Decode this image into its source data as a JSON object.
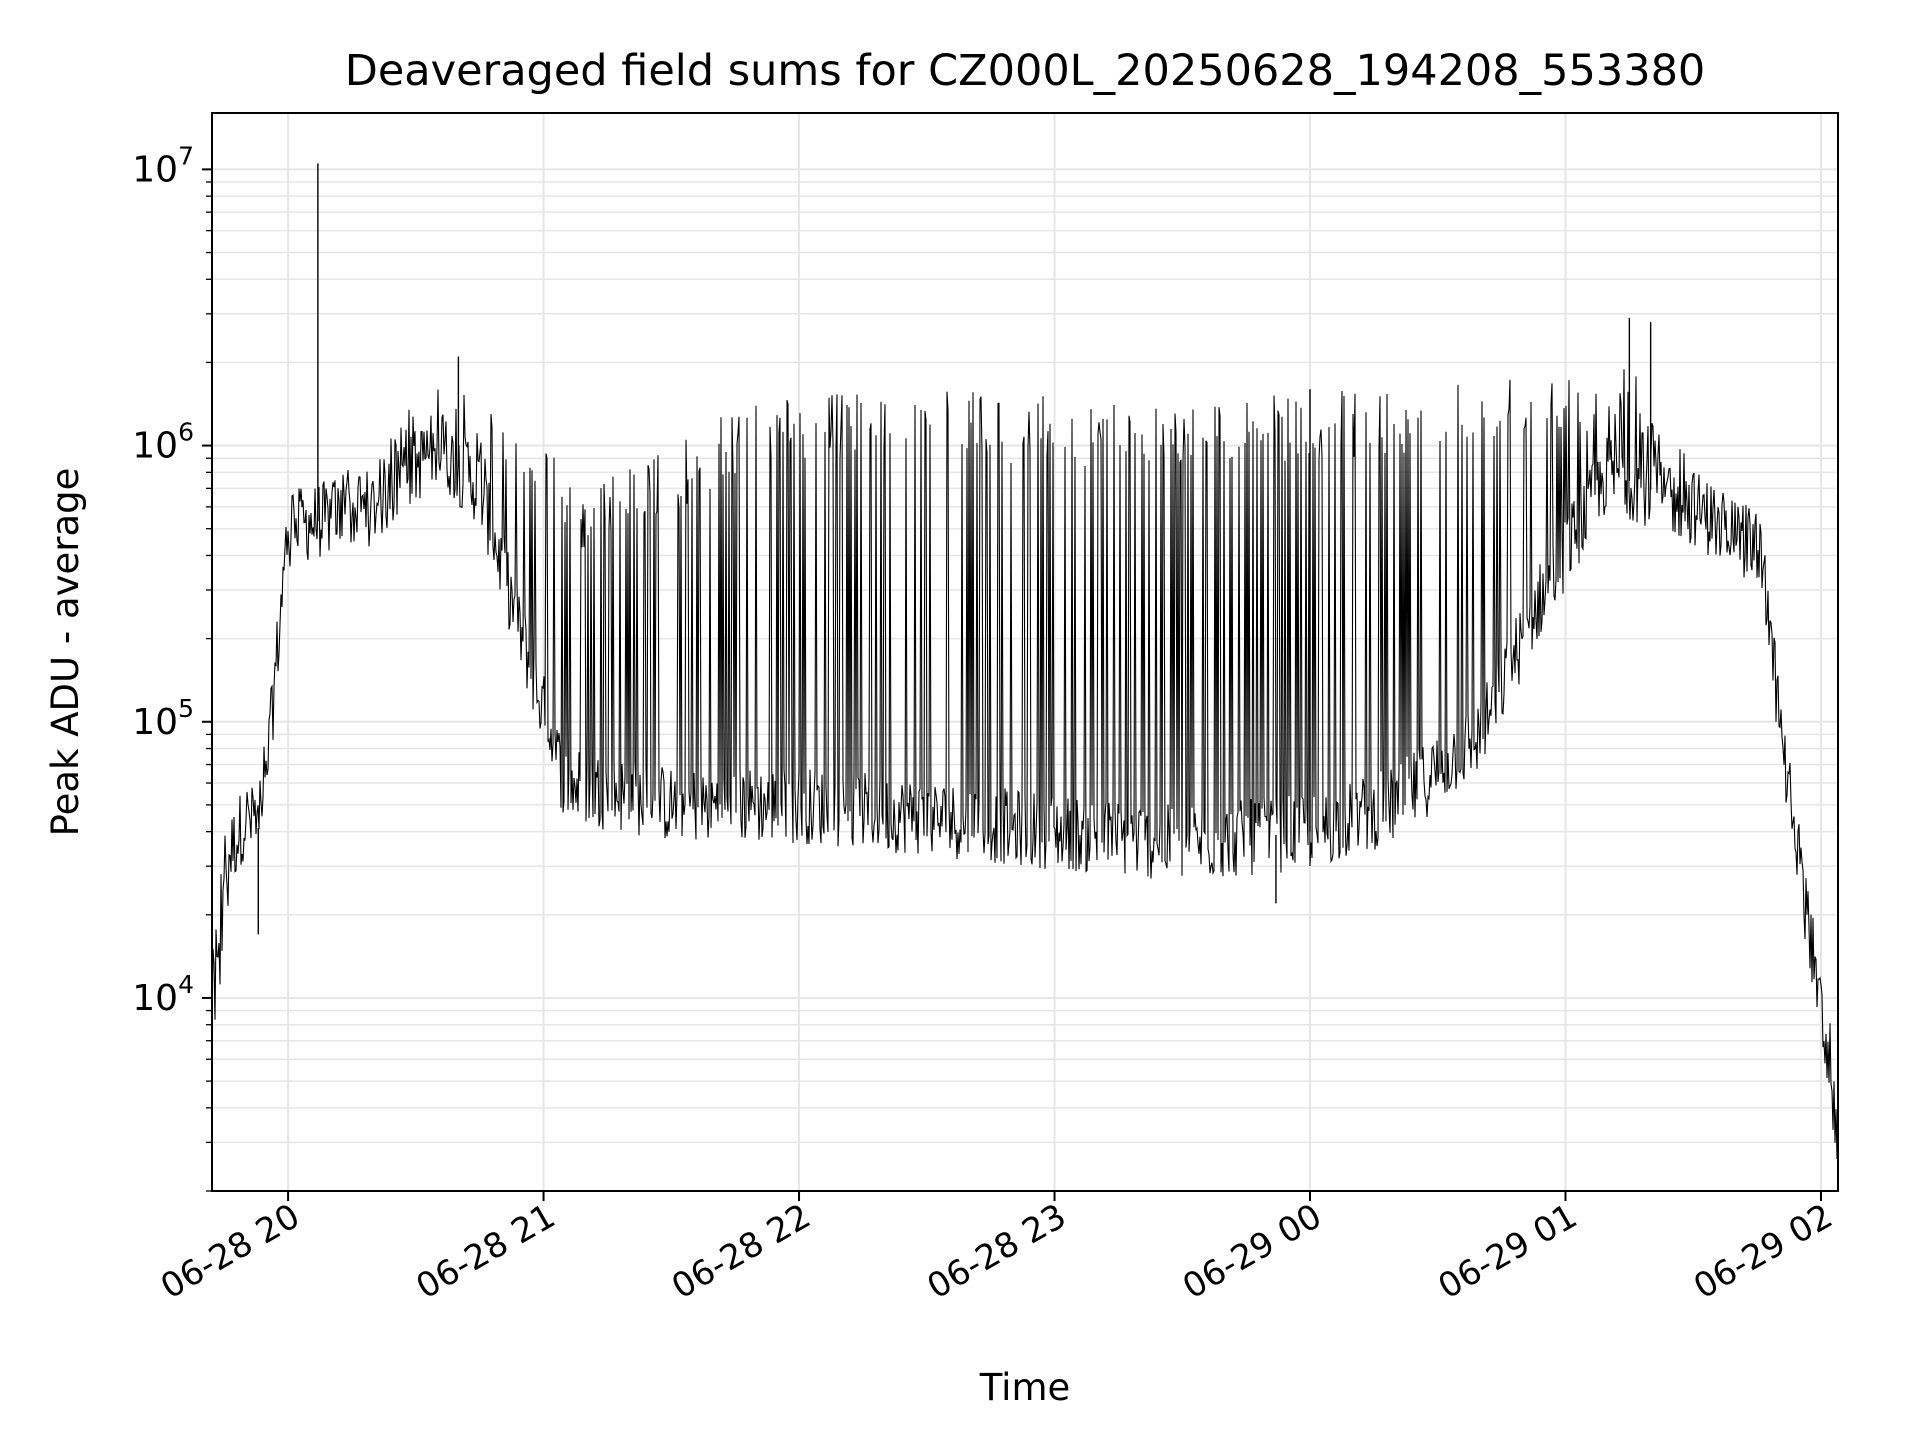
{
  "chart_data": {
    "type": "line",
    "title": "Deaveraged field sums for CZ000L_20250628_194208_553380",
    "xlabel": "Time",
    "ylabel": "Peak ADU - average",
    "y_scale": "log",
    "ylim": [
      2000,
      16000000
    ],
    "xlim": [
      "2025-06-28T19:42:08",
      "2025-06-29T02:04:00"
    ],
    "x_ticks": [
      {
        "value": "2025-06-28T20:00",
        "label": "06-28 20"
      },
      {
        "value": "2025-06-28T21:00",
        "label": "06-28 21"
      },
      {
        "value": "2025-06-28T22:00",
        "label": "06-28 22"
      },
      {
        "value": "2025-06-28T23:00",
        "label": "06-28 23"
      },
      {
        "value": "2025-06-29T00:00",
        "label": "06-29 00"
      },
      {
        "value": "2025-06-29T01:00",
        "label": "06-29 01"
      },
      {
        "value": "2025-06-29T02:00",
        "label": "06-29 02"
      }
    ],
    "y_ticks": [
      {
        "value": 10000,
        "base": "10",
        "exp": "4"
      },
      {
        "value": 100000,
        "base": "10",
        "exp": "5"
      },
      {
        "value": 1000000,
        "base": "10",
        "exp": "6"
      },
      {
        "value": 10000000,
        "base": "10",
        "exp": "7"
      }
    ],
    "grid": true,
    "legend": null,
    "series": [
      {
        "color": "#000000",
        "baseline": [
          {
            "x": "2025-06-28T19:42:08",
            "y": 10000
          },
          {
            "x": "2025-06-28T19:45",
            "y": 30000
          },
          {
            "x": "2025-06-28T19:50",
            "y": 45000
          },
          {
            "x": "2025-06-28T19:54",
            "y": 40000
          },
          {
            "x": "2025-06-28T19:57",
            "y": 150000
          },
          {
            "x": "2025-06-28T20:00",
            "y": 500000
          },
          {
            "x": "2025-06-28T20:20",
            "y": 600000
          },
          {
            "x": "2025-06-28T20:35",
            "y": 1000000
          },
          {
            "x": "2025-06-28T20:45",
            "y": 700000
          },
          {
            "x": "2025-06-28T20:55",
            "y": 200000
          },
          {
            "x": "2025-06-28T21:05",
            "y": 60000
          },
          {
            "x": "2025-06-28T21:30",
            "y": 50000
          },
          {
            "x": "2025-06-28T22:00",
            "y": 50000
          },
          {
            "x": "2025-06-28T22:30",
            "y": 45000
          },
          {
            "x": "2025-06-28T23:00",
            "y": 40000
          },
          {
            "x": "2025-06-28T23:30",
            "y": 36000
          },
          {
            "x": "2025-06-29T00:00",
            "y": 40000
          },
          {
            "x": "2025-06-29T00:20",
            "y": 50000
          },
          {
            "x": "2025-06-29T00:40",
            "y": 90000
          },
          {
            "x": "2025-06-29T00:55",
            "y": 300000
          },
          {
            "x": "2025-06-29T01:10",
            "y": 800000
          },
          {
            "x": "2025-06-29T01:30",
            "y": 600000
          },
          {
            "x": "2025-06-29T01:46",
            "y": 400000
          },
          {
            "x": "2025-06-29T01:52",
            "y": 60000
          },
          {
            "x": "2025-06-29T01:58",
            "y": 15000
          },
          {
            "x": "2025-06-29T02:04",
            "y": 3000
          }
        ],
        "upper_envelope": [
          {
            "x": "2025-06-28T19:42:08",
            "y": 12000
          },
          {
            "x": "2025-06-28T19:50",
            "y": 60000
          },
          {
            "x": "2025-06-28T19:55",
            "y": 100000
          },
          {
            "x": "2025-06-28T20:00",
            "y": 700000
          },
          {
            "x": "2025-06-28T20:20",
            "y": 900000
          },
          {
            "x": "2025-06-28T20:30",
            "y": 1500000
          },
          {
            "x": "2025-06-28T20:40",
            "y": 1700000
          },
          {
            "x": "2025-06-28T20:55",
            "y": 1200000
          },
          {
            "x": "2025-06-28T21:10",
            "y": 700000
          },
          {
            "x": "2025-06-28T21:30",
            "y": 1000000
          },
          {
            "x": "2025-06-28T21:50",
            "y": 1500000
          },
          {
            "x": "2025-06-28T22:30",
            "y": 1600000
          },
          {
            "x": "2025-06-28T23:00",
            "y": 1500000
          },
          {
            "x": "2025-06-28T23:30",
            "y": 1450000
          },
          {
            "x": "2025-06-29T00:00",
            "y": 1550000
          },
          {
            "x": "2025-06-29T00:30",
            "y": 1700000
          },
          {
            "x": "2025-06-29T01:00",
            "y": 2000000
          },
          {
            "x": "2025-06-29T01:15",
            "y": 2000000
          },
          {
            "x": "2025-06-29T01:30",
            "y": 900000
          },
          {
            "x": "2025-06-29T01:46",
            "y": 550000
          },
          {
            "x": "2025-06-29T01:52",
            "y": 100000
          },
          {
            "x": "2025-06-29T01:58",
            "y": 20000
          },
          {
            "x": "2025-06-29T02:04",
            "y": 6000
          }
        ],
        "notable_points": [
          {
            "x": "2025-06-28T20:07",
            "y": 10500000
          },
          {
            "x": "2025-06-28T20:40",
            "y": 2100000
          },
          {
            "x": "2025-06-29T00:00",
            "y": 1600000
          },
          {
            "x": "2025-06-29T01:15",
            "y": 2900000
          },
          {
            "x": "2025-06-29T01:20",
            "y": 2800000
          },
          {
            "x": "2025-06-28T23:52",
            "y": 22000
          },
          {
            "x": "2025-06-28T19:53",
            "y": 17000
          }
        ]
      }
    ]
  }
}
